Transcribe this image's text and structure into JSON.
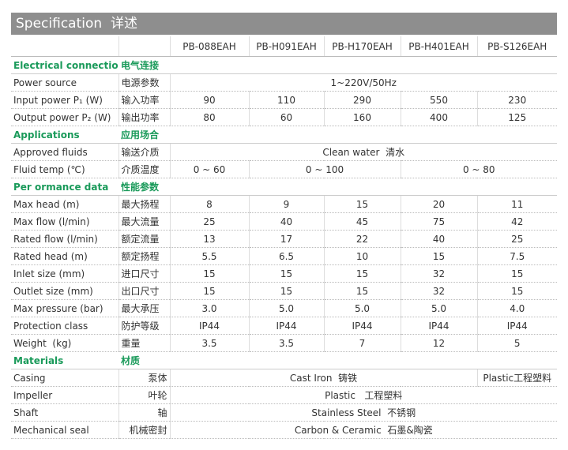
{
  "header": {
    "title": "Specification",
    "title_cn": "详述"
  },
  "models": [
    "PB-088EAH",
    "PB-H091EAH",
    "PB-H170EAH",
    "PB-H401EAH",
    "PB-S126EAH"
  ],
  "sections": [
    {
      "title": "Electrical connection",
      "title_cn": "电气连接",
      "rows": [
        {
          "label": "Power source",
          "label_cn": "电源参数",
          "cells": [
            "1~220V/50Hz"
          ]
        },
        {
          "label": "Input power P₁ (W)",
          "label_cn": "输入功率",
          "cells": [
            "90",
            "110",
            "290",
            "550",
            "230"
          ]
        },
        {
          "label": "Output power P₂ (W)",
          "label_cn": "输出功率",
          "cells": [
            "80",
            "60",
            "160",
            "400",
            "125"
          ]
        }
      ]
    },
    {
      "title": "Applications",
      "title_cn": "应用场合",
      "rows": [
        {
          "label": "Approved fluids",
          "label_cn": "输送介质",
          "cells": [
            "Clean water  清水"
          ]
        },
        {
          "label": "Fluid temp (℃)",
          "label_cn": "介质温度",
          "cells": [
            "0 ~ 60",
            "0 ~ 100",
            "0 ~ 80"
          ]
        }
      ]
    },
    {
      "title": "Per ormance data",
      "title_cn": "性能参数",
      "rows": [
        {
          "label": "Max head (m)",
          "label_cn": "最大扬程",
          "cells": [
            "8",
            "9",
            "15",
            "20",
            "11"
          ]
        },
        {
          "label": "Max flow (l/min)",
          "label_cn": "最大流量",
          "cells": [
            "25",
            "40",
            "45",
            "75",
            "42"
          ]
        },
        {
          "label": "Rated flow (l/min)",
          "label_cn": "额定流量",
          "cells": [
            "13",
            "17",
            "22",
            "40",
            "25"
          ]
        },
        {
          "label": "Rated head (m)",
          "label_cn": "额定扬程",
          "cells": [
            "5.5",
            "6.5",
            "10",
            "15",
            "7.5"
          ]
        },
        {
          "label": "Inlet size (mm)",
          "label_cn": "进口尺寸",
          "cells": [
            "15",
            "15",
            "15",
            "32",
            "15"
          ]
        },
        {
          "label": "Outlet size (mm)",
          "label_cn": "出口尺寸",
          "cells": [
            "15",
            "15",
            "15",
            "32",
            "15"
          ]
        },
        {
          "label": "Max pressure (bar)",
          "label_cn": "最大承压",
          "cells": [
            "3.0",
            "5.0",
            "5.0",
            "5.0",
            "4.0"
          ]
        },
        {
          "label": "Protection class",
          "label_cn": "防护等级",
          "cells": [
            "IP44",
            "IP44",
            "IP44",
            "IP44",
            "IP44"
          ]
        },
        {
          "label": "Weight  (kg)",
          "label_cn": "重量",
          "cells": [
            "3.5",
            "3.5",
            "7",
            "12",
            "5"
          ]
        }
      ]
    },
    {
      "title": "Materials",
      "title_cn": "材质",
      "rows": [
        {
          "label": "Casing",
          "label_cn": "泵体",
          "cells": [
            "Cast Iron  铸铁",
            "Plastic工程塑料"
          ]
        },
        {
          "label": "Impeller",
          "label_cn": "叶轮",
          "cells": [
            "Plastic   工程塑料"
          ]
        },
        {
          "label": "Shaft",
          "label_cn": "轴",
          "cells": [
            "Stainless Steel  不锈钢"
          ]
        },
        {
          "label": "Mechanical seal",
          "label_cn": "机械密封",
          "cells": [
            "Carbon & Ceramic  石墨&陶瓷"
          ]
        }
      ]
    }
  ]
}
